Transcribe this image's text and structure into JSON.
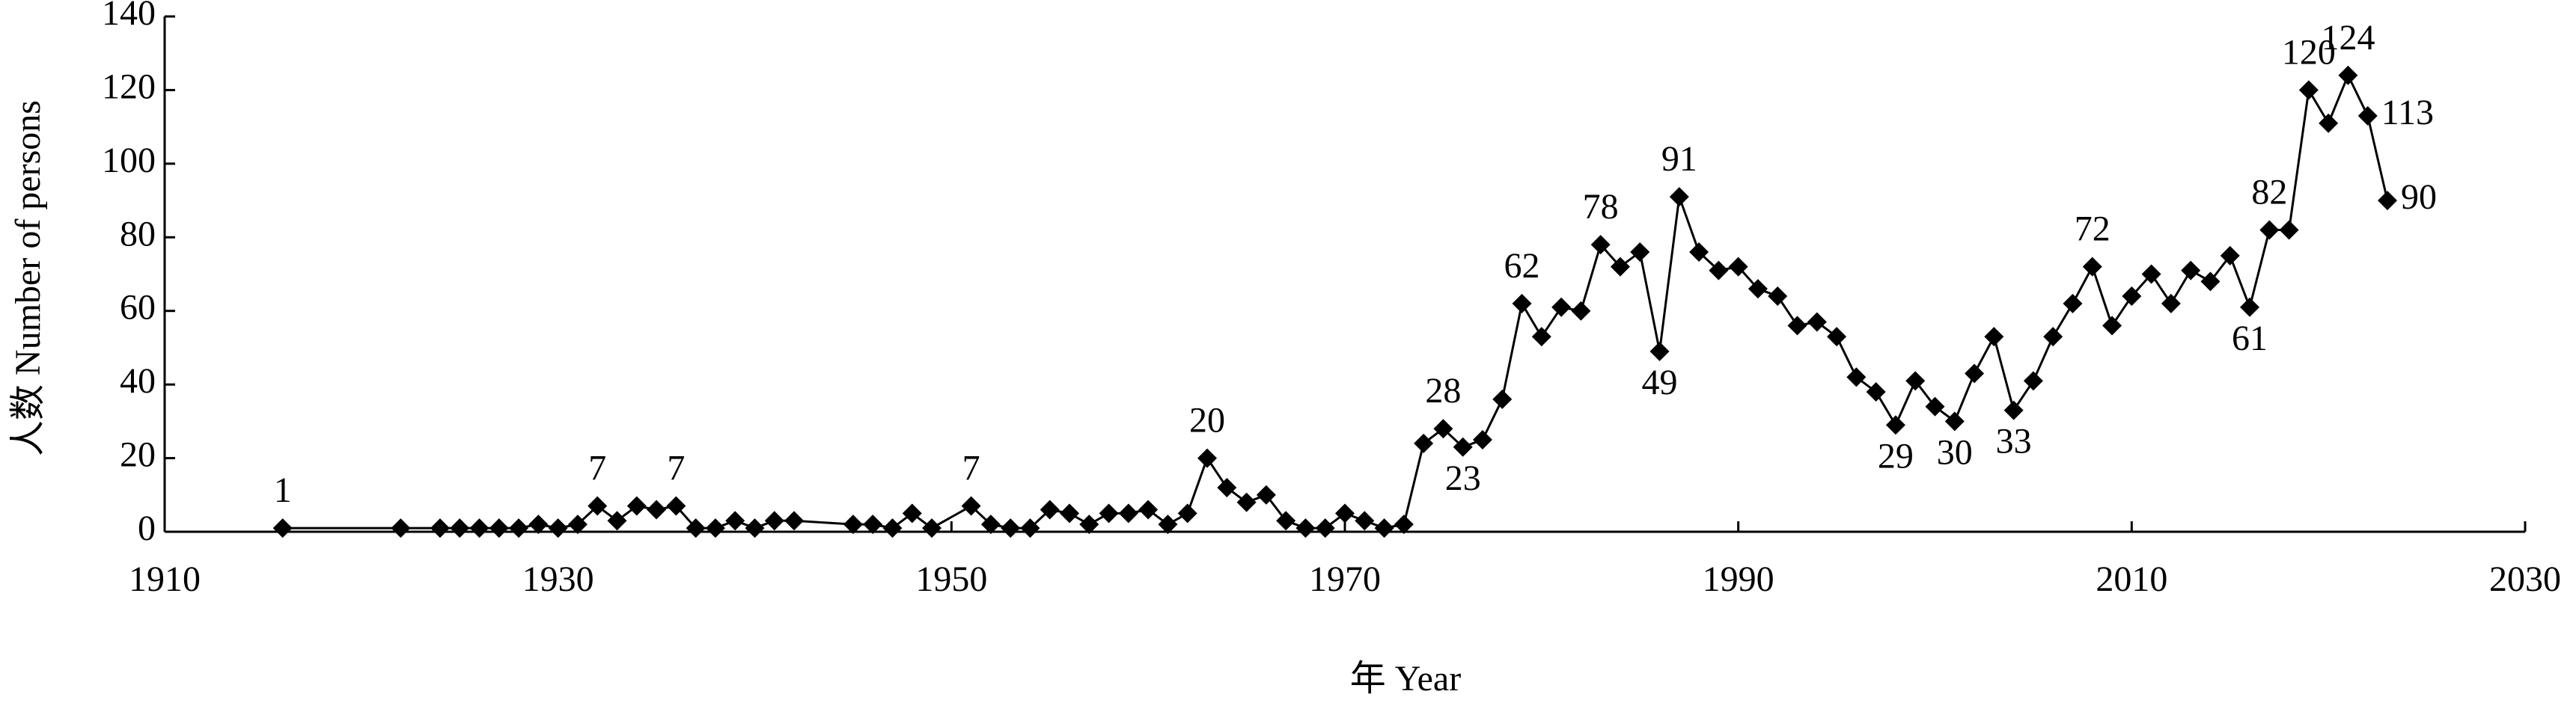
{
  "chart_data": {
    "type": "line",
    "xlabel": "年 Year",
    "ylabel": "人数 Number of persons",
    "color": "#000000",
    "xlim": [
      1910,
      2030
    ],
    "xticks": [
      1910,
      1930,
      1950,
      1970,
      1990,
      2010,
      2030
    ],
    "ylim": [
      0,
      140
    ],
    "yticks": [
      0,
      20,
      40,
      60,
      80,
      100,
      120,
      140
    ],
    "x": [
      1916,
      1922,
      1924,
      1925,
      1926,
      1927,
      1928,
      1929,
      1930,
      1931,
      1932,
      1933,
      1934,
      1935,
      1936,
      1937,
      1938,
      1939,
      1940,
      1941,
      1942,
      1945,
      1946,
      1947,
      1948,
      1949,
      1951,
      1952,
      1953,
      1954,
      1955,
      1956,
      1957,
      1958,
      1959,
      1960,
      1961,
      1962,
      1963,
      1964,
      1965,
      1966,
      1967,
      1968,
      1969,
      1970,
      1971,
      1972,
      1973,
      1974,
      1975,
      1976,
      1977,
      1978,
      1979,
      1980,
      1981,
      1982,
      1983,
      1984,
      1985,
      1986,
      1987,
      1988,
      1989,
      1990,
      1991,
      1992,
      1993,
      1994,
      1995,
      1996,
      1997,
      1998,
      1999,
      2000,
      2001,
      2002,
      2003,
      2004,
      2005,
      2006,
      2007,
      2008,
      2009,
      2010,
      2011,
      2012,
      2013,
      2014,
      2015,
      2016,
      2017,
      2018,
      2019,
      2020,
      2021,
      2022,
      2023
    ],
    "values": [
      1,
      1,
      1,
      1,
      1,
      1,
      1,
      2,
      1,
      2,
      7,
      3,
      7,
      6,
      7,
      1,
      1,
      3,
      1,
      3,
      3,
      2,
      2,
      1,
      5,
      1,
      7,
      2,
      1,
      1,
      6,
      5,
      2,
      5,
      5,
      6,
      2,
      5,
      20,
      12,
      8,
      10,
      3,
      1,
      1,
      5,
      3,
      1,
      2,
      24,
      28,
      23,
      25,
      36,
      62,
      53,
      61,
      60,
      78,
      72,
      76,
      49,
      91,
      76,
      71,
      72,
      66,
      64,
      56,
      57,
      53,
      42,
      38,
      29,
      41,
      34,
      30,
      43,
      53,
      33,
      41,
      53,
      62,
      72,
      56,
      64,
      70,
      62,
      71,
      68,
      75,
      61,
      82,
      82,
      120,
      111,
      124,
      113,
      90
    ],
    "value_labels": [
      "1",
      null,
      null,
      null,
      null,
      null,
      null,
      null,
      null,
      null,
      "7",
      null,
      null,
      null,
      "7",
      null,
      null,
      null,
      null,
      null,
      null,
      null,
      null,
      null,
      null,
      null,
      "7",
      null,
      null,
      null,
      null,
      null,
      null,
      null,
      null,
      null,
      null,
      null,
      "20",
      null,
      null,
      null,
      null,
      null,
      null,
      null,
      null,
      null,
      null,
      null,
      "28",
      "23",
      null,
      null,
      "62",
      null,
      null,
      null,
      "78",
      null,
      null,
      "49",
      "91",
      null,
      null,
      null,
      null,
      null,
      null,
      null,
      null,
      null,
      null,
      "29",
      null,
      null,
      "30",
      null,
      null,
      "33",
      null,
      null,
      null,
      "72",
      null,
      null,
      null,
      null,
      null,
      null,
      null,
      "61",
      "82",
      null,
      "120",
      null,
      "124",
      "113",
      "90"
    ]
  }
}
